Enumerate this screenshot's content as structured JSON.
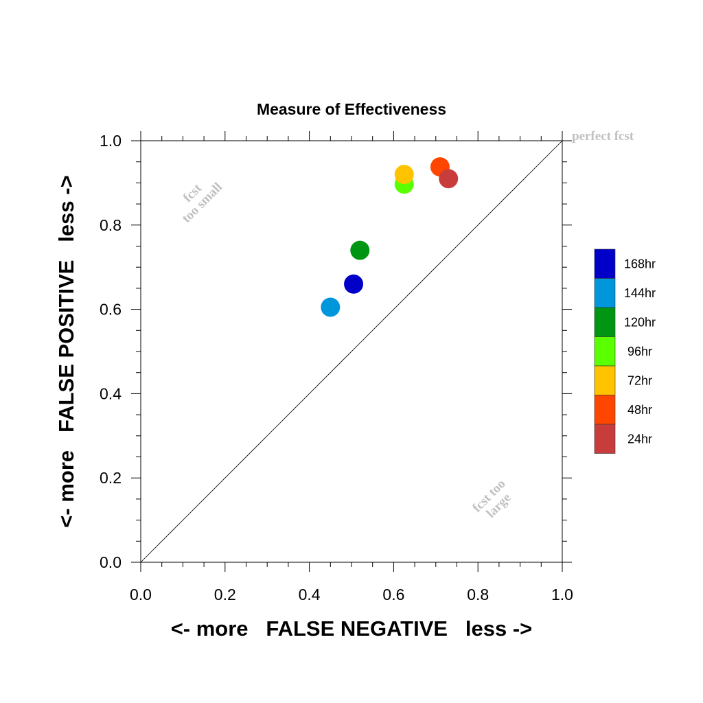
{
  "chart_data": {
    "type": "scatter",
    "title": "Measure of Effectiveness",
    "xlabel": "<- more   FALSE NEGATIVE   less ->",
    "ylabel": "<- more   FALSE POSITIVE   less ->",
    "xlim": [
      0.0,
      1.0
    ],
    "ylim": [
      0.0,
      1.0
    ],
    "xticks": [
      "0.0",
      "0.2",
      "0.4",
      "0.6",
      "0.8",
      "1.0"
    ],
    "yticks": [
      "0.0",
      "0.2",
      "0.4",
      "0.6",
      "0.8",
      "1.0"
    ],
    "grid": false,
    "reference_line": "diagonal",
    "legend_position": "right",
    "annotations": {
      "perfect": "perfect fcst",
      "small_line1": "fcst",
      "small_line2": "too small",
      "large_line1": "fcst too",
      "large_line2": "large"
    },
    "series": [
      {
        "name": "168hr",
        "color": "#0000c8",
        "x": 0.505,
        "y": 0.66
      },
      {
        "name": "144hr",
        "color": "#0096dc",
        "x": 0.45,
        "y": 0.605
      },
      {
        "name": "120hr",
        "color": "#009614",
        "x": 0.52,
        "y": 0.74
      },
      {
        "name": "96hr",
        "color": "#5aff00",
        "x": 0.625,
        "y": 0.897
      },
      {
        "name": "72hr",
        "color": "#ffc300",
        "x": 0.625,
        "y": 0.92
      },
      {
        "name": "48hr",
        "color": "#ff4600",
        "x": 0.71,
        "y": 0.938
      },
      {
        "name": "24hr",
        "color": "#c83c3c",
        "x": 0.73,
        "y": 0.91
      }
    ]
  }
}
